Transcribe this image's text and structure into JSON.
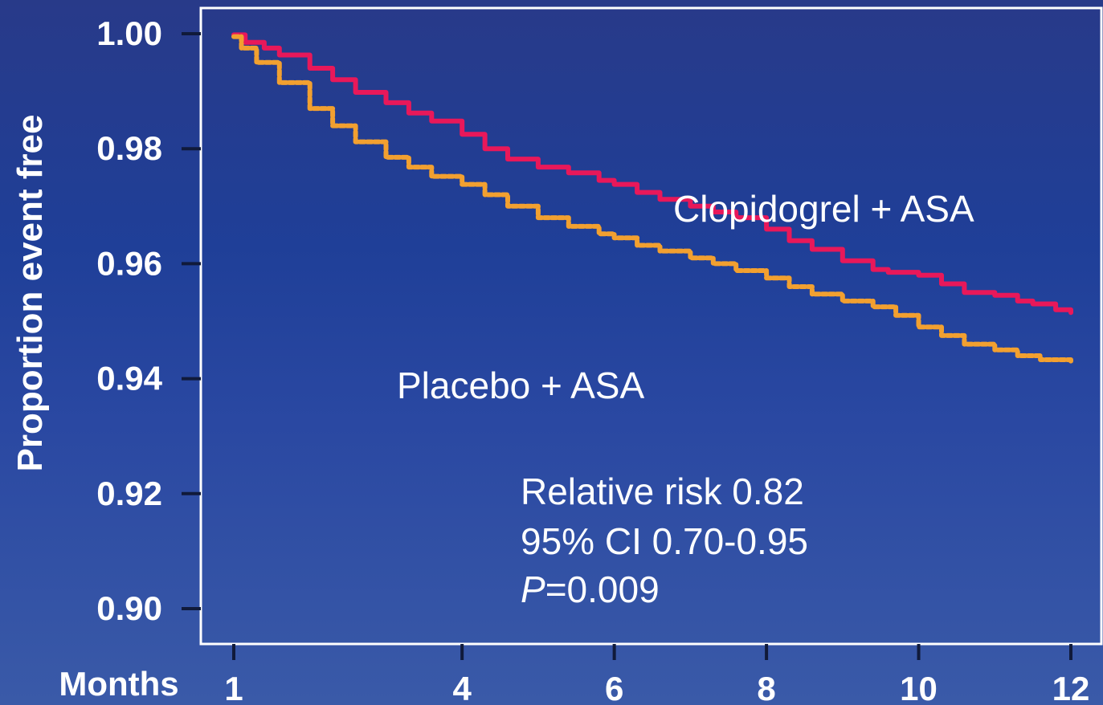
{
  "chart_data": {
    "type": "line",
    "xlabel": "Months",
    "ylabel": "Proportion event free",
    "xlim": [
      1,
      12
    ],
    "ylim": [
      0.9,
      1.0
    ],
    "x_ticks": [
      "1",
      "4",
      "6",
      "8",
      "10",
      "12"
    ],
    "y_ticks": [
      "0.90",
      "0.92",
      "0.94",
      "0.96",
      "0.98",
      "1.00"
    ],
    "series": [
      {
        "name": "Clopidogrel + ASA",
        "color": "#e8185a",
        "style": "solid",
        "x": [
          1.0,
          1.15,
          1.4,
          1.6,
          2.0,
          2.3,
          2.6,
          3.0,
          3.3,
          3.6,
          4.0,
          4.3,
          4.6,
          5.0,
          5.4,
          5.8,
          6.0,
          6.3,
          6.6,
          7.0,
          7.3,
          7.6,
          8.0,
          8.3,
          8.6,
          9.0,
          9.4,
          9.6,
          10.0,
          10.3,
          10.6,
          11.0,
          11.3,
          11.5,
          11.8,
          12.0
        ],
        "y": [
          0.9998,
          0.9985,
          0.9975,
          0.9963,
          0.994,
          0.992,
          0.9898,
          0.988,
          0.9862,
          0.9848,
          0.9825,
          0.98,
          0.9782,
          0.9768,
          0.9758,
          0.9745,
          0.9738,
          0.9724,
          0.9712,
          0.97,
          0.969,
          0.968,
          0.966,
          0.964,
          0.9625,
          0.9605,
          0.959,
          0.9585,
          0.958,
          0.9565,
          0.955,
          0.9545,
          0.9535,
          0.953,
          0.952,
          0.9515
        ]
      },
      {
        "name": "Placebo + ASA",
        "color": "#f2a030",
        "style": "dotted",
        "x": [
          1.0,
          1.1,
          1.3,
          1.6,
          2.0,
          2.3,
          2.6,
          3.0,
          3.3,
          3.6,
          4.0,
          4.3,
          4.6,
          5.0,
          5.4,
          5.8,
          6.0,
          6.3,
          6.6,
          7.0,
          7.3,
          7.6,
          8.0,
          8.3,
          8.6,
          9.0,
          9.4,
          9.7,
          10.0,
          10.3,
          10.6,
          11.0,
          11.3,
          11.6,
          12.0
        ],
        "y": [
          0.9995,
          0.9975,
          0.995,
          0.9915,
          0.987,
          0.984,
          0.9812,
          0.9785,
          0.9768,
          0.9752,
          0.9738,
          0.972,
          0.97,
          0.968,
          0.9665,
          0.9652,
          0.9645,
          0.9632,
          0.9622,
          0.961,
          0.96,
          0.9588,
          0.9575,
          0.956,
          0.9547,
          0.9535,
          0.9525,
          0.951,
          0.949,
          0.9475,
          0.946,
          0.945,
          0.944,
          0.9433,
          0.9428
        ]
      }
    ],
    "annotations": {
      "series1_label": "Clopidogrel + ASA",
      "series2_label": "Placebo + ASA",
      "relative_risk": "Relative risk 0.82",
      "ci": "95% CI 0.70-0.95",
      "p_letter": "P",
      "p_value": "=0.009"
    },
    "grid": false
  }
}
